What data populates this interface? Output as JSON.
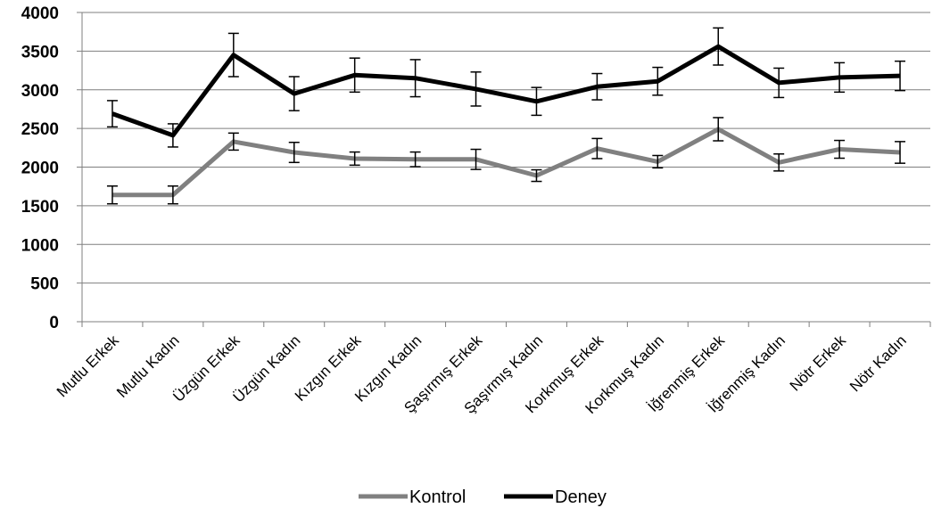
{
  "chart_data": {
    "type": "line",
    "title": "",
    "xlabel": "",
    "ylabel": "",
    "ylim": [
      0,
      4000
    ],
    "yticks": [
      0,
      500,
      1000,
      1500,
      2000,
      2500,
      3000,
      3500,
      4000
    ],
    "grid": true,
    "error_bars": true,
    "legend_position": "bottom",
    "categories": [
      "Mutlu Erkek",
      "Mutlu Kadın",
      "Üzgün Erkek",
      "Üzgün Kadın",
      "Kızgın Erkek",
      "Kızgın Kadın",
      "Şaşırmış Erkek",
      "Şaşırmış Kadın",
      "Korkmuş Erkek",
      "Korkmuş Kadın",
      "İğrenmiş Erkek",
      "İğrenmiş Kadın",
      "Nötr Erkek",
      "Nötr Kadın"
    ],
    "series": [
      {
        "name": "Kontrol",
        "color": "#808080",
        "values": [
          1640,
          1640,
          2330,
          2190,
          2110,
          2100,
          2100,
          1890,
          2240,
          2070,
          2490,
          2060,
          2230,
          2190
        ],
        "errors": [
          115,
          115,
          110,
          130,
          85,
          95,
          130,
          75,
          130,
          80,
          150,
          110,
          115,
          140
        ]
      },
      {
        "name": "Deney",
        "color": "#000000",
        "values": [
          2690,
          2410,
          3450,
          2950,
          3190,
          3150,
          3010,
          2850,
          3040,
          3110,
          3560,
          3090,
          3160,
          3180
        ],
        "errors": [
          170,
          150,
          280,
          220,
          220,
          240,
          220,
          180,
          170,
          180,
          240,
          190,
          190,
          190
        ]
      }
    ]
  }
}
